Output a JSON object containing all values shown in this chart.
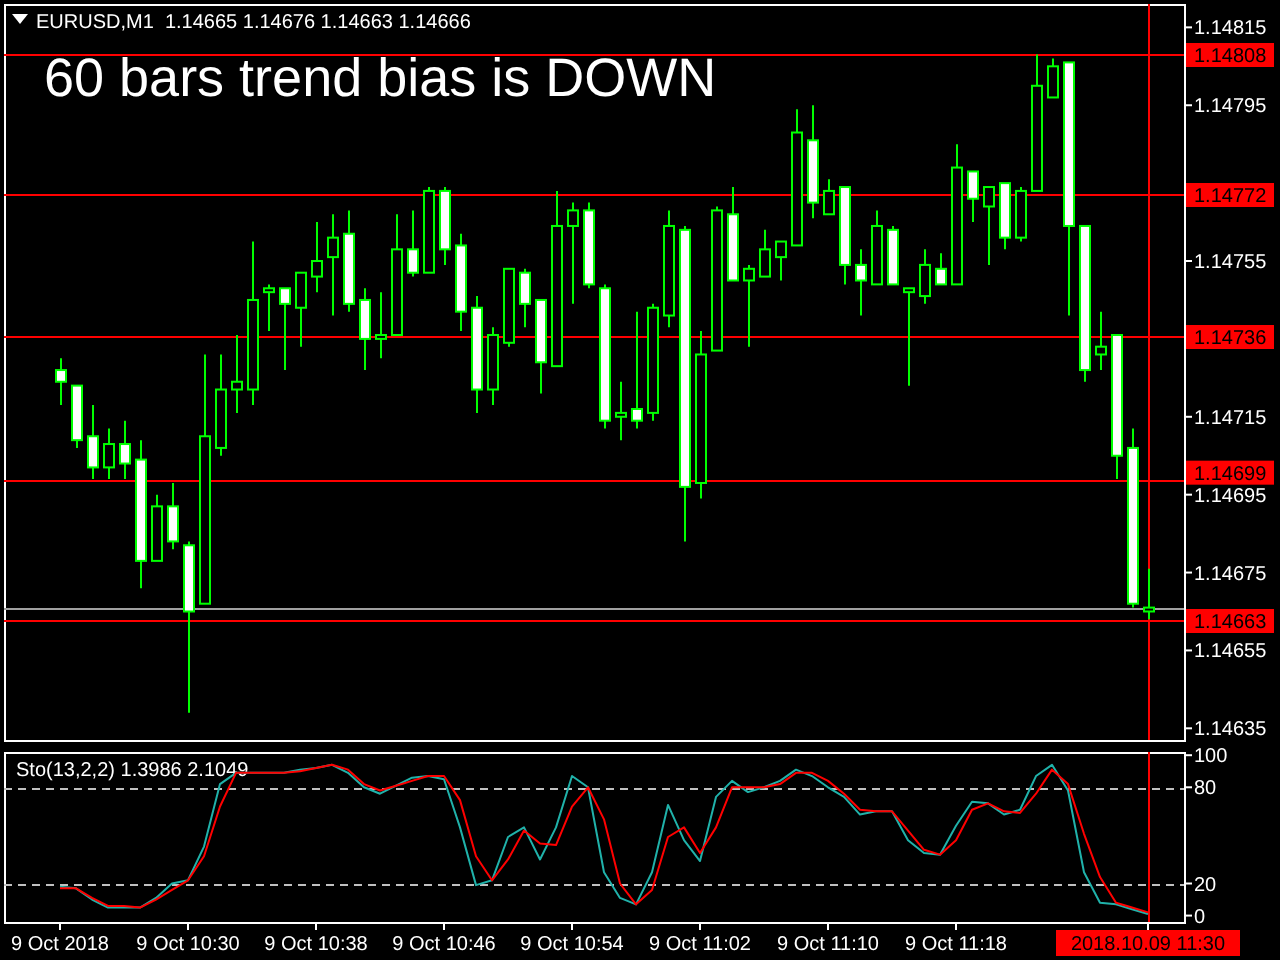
{
  "chart_data": [
    {
      "type": "candlestick",
      "title": "EURUSD,M1  1.14665 1.14676 1.14663 1.14666",
      "annotations": [
        "60 bars trend bias is DOWN"
      ],
      "categories": [
        "9 Oct 2018",
        null,
        null,
        null,
        null,
        null,
        null,
        null,
        "9 Oct 10:30",
        null,
        null,
        null,
        null,
        null,
        null,
        null,
        "9 Oct 10:38",
        null,
        null,
        null,
        null,
        null,
        null,
        null,
        "9 Oct 10:46",
        null,
        null,
        null,
        null,
        null,
        null,
        null,
        "9 Oct 10:54",
        null,
        null,
        null,
        null,
        null,
        null,
        null,
        "9 Oct 11:02",
        null,
        null,
        null,
        null,
        null,
        null,
        null,
        "9 Oct 11:10",
        null,
        null,
        null,
        null,
        null,
        null,
        null,
        "9 Oct 11:18",
        null,
        null,
        null,
        null,
        null,
        null,
        null,
        null,
        null,
        null,
        null,
        "2018.10.09 11:30"
      ],
      "ohlc": [
        [
          1.14727,
          1.1473,
          1.14718,
          1.14724
        ],
        [
          1.14723,
          1.14723,
          1.14707,
          1.14709
        ],
        [
          1.1471,
          1.14718,
          1.14699,
          1.14702
        ],
        [
          1.14702,
          1.14712,
          1.14699,
          1.14708
        ],
        [
          1.14708,
          1.14714,
          1.14699,
          1.14703
        ],
        [
          1.14704,
          1.14709,
          1.14671,
          1.14678
        ],
        [
          1.14678,
          1.14695,
          1.14678,
          1.14692
        ],
        [
          1.14692,
          1.14698,
          1.14681,
          1.14683
        ],
        [
          1.14682,
          1.14683,
          1.14639,
          1.14665
        ],
        [
          1.14667,
          1.14731,
          1.14667,
          1.1471
        ],
        [
          1.14707,
          1.14731,
          1.14705,
          1.14722
        ],
        [
          1.14722,
          1.14736,
          1.14716,
          1.14724
        ],
        [
          1.14722,
          1.1476,
          1.14718,
          1.14745
        ],
        [
          1.14747,
          1.14749,
          1.14737,
          1.14748
        ],
        [
          1.14748,
          1.14748,
          1.14727,
          1.14744
        ],
        [
          1.14743,
          1.14752,
          1.14733,
          1.14752
        ],
        [
          1.14751,
          1.14765,
          1.14747,
          1.14755
        ],
        [
          1.14756,
          1.14767,
          1.14741,
          1.14761
        ],
        [
          1.14762,
          1.14768,
          1.14742,
          1.14744
        ],
        [
          1.14745,
          1.14748,
          1.14727,
          1.14735
        ],
        [
          1.14735,
          1.14747,
          1.1473,
          1.14736
        ],
        [
          1.14736,
          1.14767,
          1.14736,
          1.14758
        ],
        [
          1.14758,
          1.14768,
          1.14751,
          1.14752
        ],
        [
          1.14752,
          1.14774,
          1.14752,
          1.14773
        ],
        [
          1.14773,
          1.14774,
          1.14754,
          1.14758
        ],
        [
          1.14759,
          1.14762,
          1.14737,
          1.14742
        ],
        [
          1.14743,
          1.14746,
          1.14716,
          1.14722
        ],
        [
          1.14722,
          1.14738,
          1.14718,
          1.14736
        ],
        [
          1.14734,
          1.14753,
          1.14733,
          1.14753
        ],
        [
          1.14752,
          1.14753,
          1.14738,
          1.14744
        ],
        [
          1.14745,
          1.14745,
          1.14721,
          1.14729
        ],
        [
          1.14728,
          1.14773,
          1.14728,
          1.14764
        ],
        [
          1.14764,
          1.1477,
          1.14744,
          1.14768
        ],
        [
          1.14768,
          1.1477,
          1.14748,
          1.14749
        ],
        [
          1.14748,
          1.14749,
          1.14712,
          1.14714
        ],
        [
          1.14715,
          1.14724,
          1.14709,
          1.14716
        ],
        [
          1.14717,
          1.14742,
          1.14712,
          1.14714
        ],
        [
          1.14716,
          1.14744,
          1.14714,
          1.14743
        ],
        [
          1.14741,
          1.14768,
          1.14738,
          1.14764
        ],
        [
          1.14763,
          1.14764,
          1.14683,
          1.14697
        ],
        [
          1.14698,
          1.14737,
          1.14694,
          1.14731
        ],
        [
          1.14732,
          1.14769,
          1.14732,
          1.14768
        ],
        [
          1.14767,
          1.14774,
          1.1475,
          1.1475
        ],
        [
          1.1475,
          1.14754,
          1.14733,
          1.14753
        ],
        [
          1.14751,
          1.14763,
          1.14751,
          1.14758
        ],
        [
          1.14756,
          1.1476,
          1.1475,
          1.1476
        ],
        [
          1.14759,
          1.14794,
          1.14759,
          1.14788
        ],
        [
          1.14786,
          1.14795,
          1.14766,
          1.1477
        ],
        [
          1.14767,
          1.14776,
          1.14767,
          1.14773
        ],
        [
          1.14774,
          1.14774,
          1.14749,
          1.14754
        ],
        [
          1.14754,
          1.14758,
          1.14741,
          1.1475
        ],
        [
          1.14749,
          1.14768,
          1.14749,
          1.14764
        ],
        [
          1.14763,
          1.14764,
          1.14749,
          1.14749
        ],
        [
          1.14747,
          1.14748,
          1.14723,
          1.14748
        ],
        [
          1.14746,
          1.14758,
          1.14744,
          1.14754
        ],
        [
          1.14753,
          1.14757,
          1.14749,
          1.14749
        ],
        [
          1.14749,
          1.14785,
          1.14749,
          1.14779
        ],
        [
          1.14778,
          1.14778,
          1.14765,
          1.14771
        ],
        [
          1.14769,
          1.14774,
          1.14754,
          1.14774
        ],
        [
          1.14775,
          1.14775,
          1.14758,
          1.14761
        ],
        [
          1.14761,
          1.14774,
          1.1476,
          1.14773
        ],
        [
          1.14773,
          1.14808,
          1.14773,
          1.148
        ],
        [
          1.14797,
          1.14807,
          1.14797,
          1.14805
        ],
        [
          1.14806,
          1.14806,
          1.14741,
          1.14764
        ],
        [
          1.14764,
          1.14764,
          1.14724,
          1.14727
        ],
        [
          1.14731,
          1.14742,
          1.14727,
          1.14733
        ],
        [
          1.14736,
          1.14736,
          1.14699,
          1.14705
        ],
        [
          1.14707,
          1.14712,
          1.14666,
          1.14667
        ],
        [
          1.14665,
          1.14676,
          1.14663,
          1.14666
        ]
      ],
      "ylim": [
        1.14632,
        1.14821
      ],
      "yticks": [
        1.14815,
        1.14795,
        1.14755,
        1.14715,
        1.14695,
        1.14675,
        1.14655,
        1.14635
      ],
      "ref_lines": [
        {
          "axis": "y",
          "value": 1.14808,
          "label": "1.14808",
          "color": "#ff0000"
        },
        {
          "axis": "y",
          "value": 1.14772,
          "label": "1.14772",
          "color": "#ff0000"
        },
        {
          "axis": "y",
          "value": 1.14736,
          "label": "1.14736",
          "color": "#ff0000"
        },
        {
          "axis": "y",
          "value": 1.14699,
          "label": "1.14699",
          "color": "#ff0000"
        },
        {
          "axis": "y",
          "value": 1.14663,
          "label": "1.14663",
          "color": "#ff0000"
        },
        {
          "axis": "y",
          "value": 1.14666,
          "color": "#a0a0a0"
        },
        {
          "axis": "x",
          "value": "2018.10.09 11:30",
          "color": "#ff0000"
        }
      ],
      "tick_labels": "y"
    },
    {
      "type": "line",
      "title": "Sto(13,2,2) 1.3986 2.1049",
      "categories": [
        "9 Oct 2018",
        null,
        null,
        null,
        null,
        null,
        null,
        null,
        "9 Oct 10:30",
        null,
        null,
        null,
        null,
        null,
        null,
        null,
        "9 Oct 10:38",
        null,
        null,
        null,
        null,
        null,
        null,
        null,
        "9 Oct 10:46",
        null,
        null,
        null,
        null,
        null,
        null,
        null,
        "9 Oct 10:54",
        null,
        null,
        null,
        null,
        null,
        null,
        null,
        "9 Oct 11:02",
        null,
        null,
        null,
        null,
        null,
        null,
        null,
        "9 Oct 11:10",
        null,
        null,
        null,
        null,
        null,
        null,
        null,
        "9 Oct 11:18",
        null,
        null,
        null,
        null,
        null,
        null,
        null,
        null,
        null,
        null,
        null,
        "2018.10.09 11:30"
      ],
      "series": [
        {
          "color": "#20b2aa",
          "values": [
            18,
            17,
            10,
            5,
            5,
            5,
            11,
            20,
            22,
            43,
            82,
            89,
            89,
            89,
            89,
            91,
            92,
            94,
            89,
            80,
            76,
            81,
            86,
            87,
            85,
            55,
            19,
            22,
            49,
            55,
            35,
            55,
            87,
            80,
            27,
            11,
            7,
            27,
            69,
            47,
            34,
            74,
            84,
            77,
            80,
            84,
            91,
            87,
            80,
            74,
            63,
            65,
            65,
            47,
            39,
            38,
            56,
            71,
            70,
            63,
            66,
            87,
            94,
            78,
            27,
            8,
            7,
            4,
            1
          ]
        },
        {
          "color": "#ff0000",
          "values": [
            17,
            17,
            11,
            6,
            6,
            5,
            10,
            16,
            22,
            37,
            68,
            89,
            89,
            89,
            89,
            90,
            92,
            94,
            91,
            82,
            78,
            81,
            84,
            87,
            87,
            72,
            37,
            22,
            35,
            53,
            45,
            44,
            68,
            80,
            60,
            20,
            7,
            16,
            49,
            55,
            39,
            55,
            80,
            80,
            80,
            82,
            89,
            89,
            84,
            76,
            66,
            65,
            65,
            53,
            41,
            38,
            47,
            66,
            70,
            65,
            64,
            76,
            91,
            82,
            51,
            24,
            8,
            5,
            2
          ]
        }
      ],
      "ylim": [
        -4,
        102
      ],
      "yticks": [
        0,
        20,
        80,
        100
      ],
      "ref_lines": [
        {
          "axis": "y",
          "value": 80,
          "color": "#c0c0c0",
          "line_style": "dashed"
        },
        {
          "axis": "y",
          "value": 20,
          "color": "#c0c0c0",
          "line_style": "dashed"
        },
        {
          "axis": "x",
          "value": "2018.10.09 11:30",
          "color": "#ff0000"
        }
      ]
    }
  ]
}
